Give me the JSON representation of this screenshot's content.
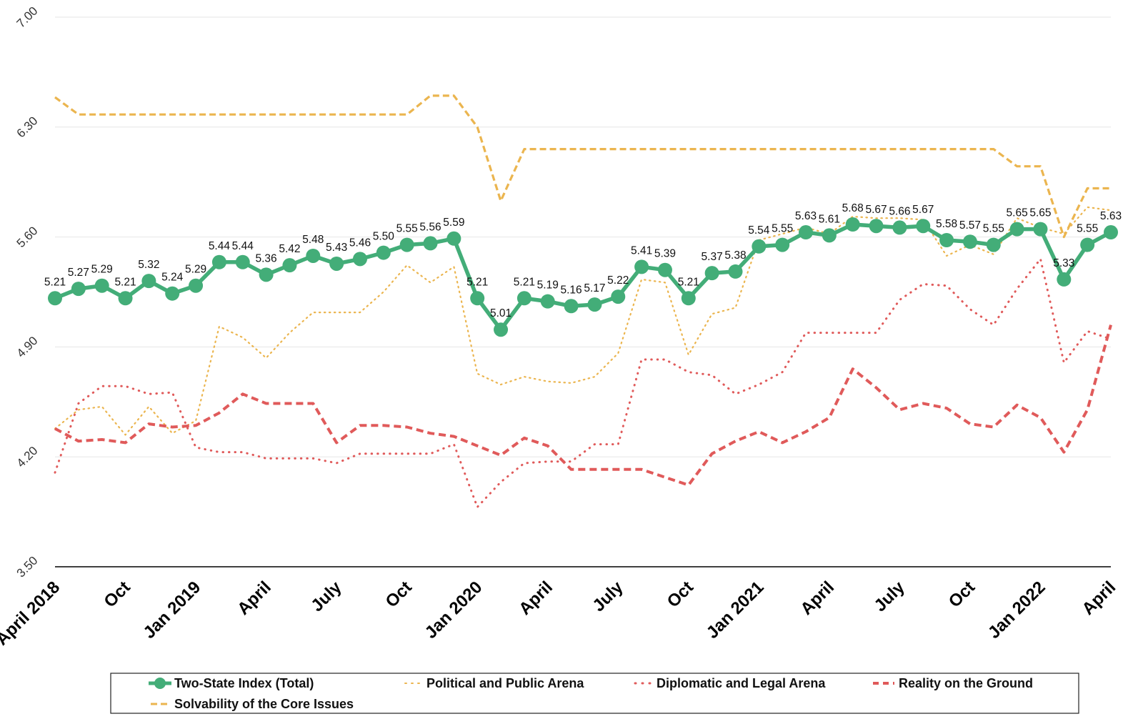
{
  "chart_data": {
    "type": "line",
    "title": "",
    "xlabel": "",
    "ylabel": "",
    "ylim": [
      3.5,
      7.0
    ],
    "yticks": [
      "3.50",
      "4.20",
      "4.90",
      "5.60",
      "6.30",
      "7.00"
    ],
    "xtick_labels": [
      "April 2018",
      "Oct",
      "Jan 2019",
      "April",
      "July",
      "Oct",
      "Jan 2020",
      "April",
      "July",
      "Oct",
      "Jan 2021",
      "April",
      "July",
      "Oct",
      "Jan 2022",
      "April"
    ],
    "xtick_positions": [
      0,
      3,
      6,
      9,
      12,
      15,
      18,
      21,
      24,
      27,
      30,
      33,
      36,
      39,
      42,
      45
    ],
    "colors": {
      "green": "#43ad78",
      "yellow": "#ebb54f",
      "red": "#e05a5a",
      "axis": "#000000",
      "grid": "#e6e6e6"
    },
    "series": [
      {
        "name": "Two-State Index (Total)",
        "style": "solid-markers",
        "color": "#43ad78",
        "values": [
          5.21,
          5.27,
          5.29,
          5.21,
          5.32,
          5.24,
          5.29,
          5.44,
          5.44,
          5.36,
          5.42,
          5.48,
          5.43,
          5.46,
          5.5,
          5.55,
          5.56,
          5.59,
          5.21,
          5.01,
          5.21,
          5.19,
          5.16,
          5.17,
          5.22,
          5.41,
          5.39,
          5.21,
          5.37,
          5.38,
          5.54,
          5.55,
          5.63,
          5.61,
          5.68,
          5.67,
          5.66,
          5.67,
          5.58,
          5.57,
          5.55,
          5.65,
          5.65,
          5.33,
          5.55,
          5.63
        ],
        "labels": [
          "5.21",
          "5.27",
          "5.29",
          "5.21",
          "5.32",
          "5.24",
          "5.29",
          "5.44",
          "5.44",
          "5.36",
          "5.42",
          "5.48",
          "5.43",
          "5.46",
          "5.50",
          "5.55",
          "5.56",
          "5.59",
          "5.21",
          "5.01",
          "5.21",
          "5.19",
          "5.16",
          "5.17",
          "5.22",
          "5.41",
          "5.39",
          "5.21",
          "5.37",
          "5.38",
          "5.54",
          "5.55",
          "5.63",
          "5.61",
          "5.68",
          "5.67",
          "5.66",
          "5.67",
          "5.58",
          "5.57",
          "5.55",
          "5.65",
          "5.65",
          "5.33",
          "5.55",
          "5.63"
        ]
      },
      {
        "name": "Political and Public Arena",
        "style": "dotted-fine",
        "color": "#ebb54f",
        "values": [
          4.38,
          4.5,
          4.52,
          4.34,
          4.52,
          4.35,
          4.43,
          5.03,
          4.96,
          4.83,
          4.99,
          5.12,
          5.12,
          5.12,
          5.25,
          5.42,
          5.31,
          5.41,
          4.73,
          4.66,
          4.71,
          4.68,
          4.67,
          4.71,
          4.86,
          5.33,
          5.31,
          4.85,
          5.11,
          5.15,
          5.58,
          5.62,
          5.66,
          5.62,
          5.73,
          5.72,
          5.72,
          5.71,
          5.48,
          5.55,
          5.49,
          5.72,
          5.66,
          5.62,
          5.79,
          5.77
        ]
      },
      {
        "name": "Diplomatic and Legal Arena",
        "style": "dotted-coarse",
        "color": "#e05a5a",
        "values": [
          4.1,
          4.54,
          4.65,
          4.65,
          4.6,
          4.61,
          4.26,
          4.23,
          4.23,
          4.19,
          4.19,
          4.19,
          4.16,
          4.22,
          4.22,
          4.22,
          4.22,
          4.28,
          3.88,
          4.04,
          4.16,
          4.17,
          4.17,
          4.28,
          4.28,
          4.82,
          4.82,
          4.74,
          4.72,
          4.6,
          4.66,
          4.74,
          4.99,
          4.99,
          4.99,
          4.99,
          5.2,
          5.3,
          5.29,
          5.14,
          5.04,
          5.27,
          5.46,
          4.8,
          5.0,
          4.95
        ]
      },
      {
        "name": "Reality on the Ground",
        "style": "dashed-bold",
        "color": "#e05a5a",
        "values": [
          4.38,
          4.3,
          4.31,
          4.29,
          4.41,
          4.39,
          4.4,
          4.48,
          4.6,
          4.54,
          4.54,
          4.54,
          4.29,
          4.4,
          4.4,
          4.39,
          4.35,
          4.33,
          4.27,
          4.21,
          4.32,
          4.27,
          4.12,
          4.12,
          4.12,
          4.12,
          4.07,
          4.02,
          4.22,
          4.3,
          4.36,
          4.29,
          4.36,
          4.45,
          4.76,
          4.64,
          4.5,
          4.54,
          4.51,
          4.41,
          4.39,
          4.53,
          4.45,
          4.23,
          4.5,
          5.04
        ]
      },
      {
        "name": "Solvability of the Core Issues",
        "style": "dashed-fine",
        "color": "#ebb54f",
        "values": [
          6.49,
          6.38,
          6.38,
          6.38,
          6.38,
          6.38,
          6.38,
          6.38,
          6.38,
          6.38,
          6.38,
          6.38,
          6.38,
          6.38,
          6.38,
          6.38,
          6.5,
          6.5,
          6.3,
          5.83,
          6.16,
          6.16,
          6.16,
          6.16,
          6.16,
          6.16,
          6.16,
          6.16,
          6.16,
          6.16,
          6.16,
          6.16,
          6.16,
          6.16,
          6.16,
          6.16,
          6.16,
          6.16,
          6.16,
          6.16,
          6.16,
          6.05,
          6.05,
          5.6,
          5.91,
          5.91
        ]
      }
    ],
    "legend": {
      "position": "bottom",
      "entries": [
        "Two-State Index (Total)",
        "Political and Public Arena",
        "Diplomatic and Legal Arena",
        "Reality on the Ground",
        "Solvability of the Core Issues"
      ]
    }
  }
}
